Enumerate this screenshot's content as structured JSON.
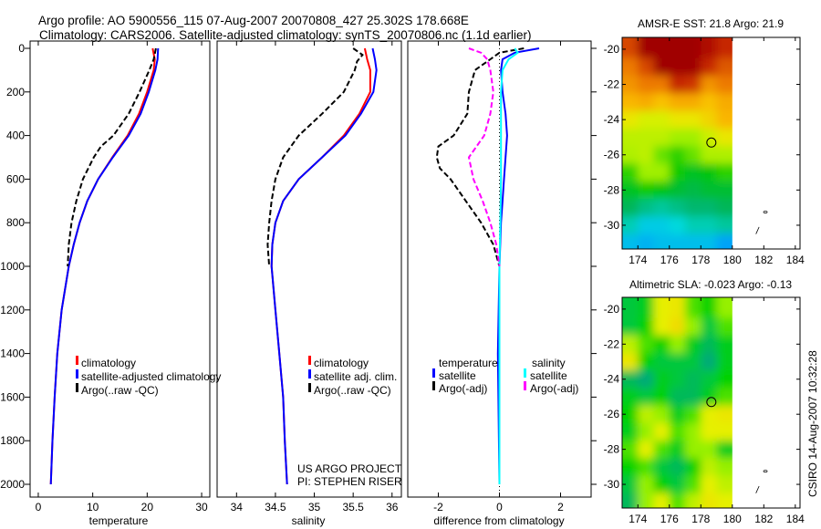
{
  "title_line1": "Argo profile: AO 5900556_115 07-Aug-2007 20070808_427 25.302S 178.668E",
  "title_line2": "Climatology: CARS2006. Satellite-adjusted climatology: synTS_20070806.nc (1.1d earlier)",
  "project_line1": "US ARGO PROJECT",
  "project_line2": "PI: STEPHEN RISER",
  "footer": "CSIRO 14-Aug-2007 10:32:28",
  "colors": {
    "climatology": "#ff0000",
    "satellite": "#0000ff",
    "argo": "#000000",
    "sal_satellite": "#00ffff",
    "sal_argo": "#ff00ff"
  },
  "chart_data": [
    {
      "type": "line",
      "xlabel": "temperature",
      "ylabel": "",
      "xlim": [
        -1.5,
        31.5
      ],
      "ylim": [
        0,
        2060
      ],
      "y_inverted": true,
      "xticks": [
        0,
        10,
        20,
        30
      ],
      "yticks": [
        0,
        200,
        400,
        600,
        800,
        1000,
        1200,
        1400,
        1600,
        1800,
        2000
      ],
      "legend": [
        "climatology",
        "satellite-adjusted climatology",
        "Argo(..raw -QC)"
      ],
      "series": [
        {
          "name": "climatology",
          "color": "#ff0000",
          "dash": false,
          "depth": [
            0,
            50,
            100,
            200,
            300,
            400,
            500,
            600,
            700,
            800,
            900,
            1000,
            1200,
            1400,
            1600,
            1800,
            2000
          ],
          "values": [
            21,
            21.4,
            21.2,
            20,
            18.5,
            16.4,
            13.6,
            11,
            9,
            7.6,
            6.5,
            5.6,
            4.3,
            3.5,
            3,
            2.6,
            2.3
          ]
        },
        {
          "name": "satellite-adjusted climatology",
          "color": "#0000ff",
          "dash": false,
          "depth": [
            0,
            50,
            100,
            200,
            300,
            400,
            500,
            600,
            700,
            800,
            900,
            1000,
            1200,
            1400,
            1600,
            1800,
            2000
          ],
          "values": [
            22,
            21.9,
            21.5,
            20.3,
            18.8,
            16.6,
            13.7,
            11,
            9,
            7.6,
            6.5,
            5.6,
            4.3,
            3.5,
            3,
            2.6,
            2.3
          ]
        },
        {
          "name": "Argo(..raw -QC)",
          "color": "#000000",
          "dash": true,
          "depth": [
            0,
            50,
            100,
            200,
            300,
            400,
            450,
            500,
            600,
            700,
            800,
            900,
            1000
          ],
          "values": [
            21.6,
            21.2,
            20.4,
            18.6,
            16.6,
            13.8,
            11.5,
            10.2,
            8.2,
            7,
            6.1,
            5.6,
            5.4
          ]
        }
      ]
    },
    {
      "type": "line",
      "xlabel": "salinity",
      "xlim": [
        33.75,
        36.12
      ],
      "ylim": [
        0,
        2060
      ],
      "y_inverted": true,
      "xticks": [
        34,
        34.5,
        35,
        35.5,
        36
      ],
      "legend": [
        "climatology",
        "satellite adj. clim.",
        "Argo(..raw -QC)"
      ],
      "series": [
        {
          "name": "climatology",
          "color": "#ff0000",
          "dash": false,
          "depth": [
            0,
            50,
            100,
            200,
            300,
            400,
            500,
            600,
            700,
            800,
            900,
            1000,
            1200,
            1400,
            1600,
            1800,
            2000
          ],
          "values": [
            35.65,
            35.68,
            35.72,
            35.72,
            35.58,
            35.38,
            35.1,
            34.8,
            34.6,
            34.5,
            34.46,
            34.45,
            34.5,
            34.55,
            34.6,
            34.62,
            34.65
          ]
        },
        {
          "name": "satellite adj. clim.",
          "color": "#0000ff",
          "dash": false,
          "depth": [
            0,
            50,
            100,
            200,
            300,
            400,
            500,
            600,
            700,
            800,
            900,
            1000,
            1200,
            1400,
            1600,
            1800,
            2000
          ],
          "values": [
            35.75,
            35.78,
            35.8,
            35.76,
            35.6,
            35.4,
            35.1,
            34.8,
            34.6,
            34.5,
            34.46,
            34.45,
            34.5,
            34.55,
            34.6,
            34.62,
            34.65
          ]
        },
        {
          "name": "Argo(..raw -QC)",
          "color": "#000000",
          "dash": true,
          "depth": [
            0,
            30,
            60,
            100,
            200,
            300,
            400,
            500,
            600,
            700,
            800,
            900,
            1000
          ],
          "values": [
            35.5,
            35.62,
            35.55,
            35.52,
            35.38,
            35.1,
            34.8,
            34.6,
            34.5,
            34.45,
            34.42,
            34.4,
            34.42
          ]
        }
      ]
    },
    {
      "type": "line",
      "xlabel": "difference from climatology",
      "xlim": [
        -3,
        3
      ],
      "ylim": [
        0,
        2060
      ],
      "y_inverted": true,
      "xticks": [
        -2,
        0,
        2
      ],
      "legend_headers": [
        "temperature",
        "salinity"
      ],
      "legend": [
        "satellite",
        "Argo(-adj)",
        "satellite",
        "Argo(-adj)"
      ],
      "series": [
        {
          "name": "temperature satellite",
          "color": "#0000ff",
          "dash": false,
          "depth": [
            0,
            20,
            50,
            100,
            200,
            300,
            400,
            500,
            600,
            700,
            800,
            1000,
            1400,
            2000
          ],
          "values": [
            1.3,
            0.5,
            0.1,
            0.05,
            0.1,
            0.2,
            0.25,
            0.2,
            0.15,
            0.1,
            0.05,
            0,
            -0.05,
            0
          ]
        },
        {
          "name": "temperature Argo(-adj)",
          "color": "#000000",
          "dash": true,
          "depth": [
            0,
            20,
            50,
            100,
            200,
            300,
            400,
            450,
            500,
            550,
            600,
            700,
            800,
            900,
            1000
          ],
          "values": [
            0.8,
            0,
            -0.3,
            -0.8,
            -1,
            -1.05,
            -1.5,
            -2,
            -2.05,
            -1.95,
            -1.6,
            -1.1,
            -0.6,
            -0.2,
            0
          ]
        },
        {
          "name": "salinity satellite",
          "color": "#00ffff",
          "dash": false,
          "depth": [
            0,
            20,
            50,
            100,
            200,
            400,
            600,
            800,
            1000,
            1400,
            2000
          ],
          "values": [
            0.5,
            0.6,
            0.3,
            0.1,
            0.05,
            0.05,
            0.05,
            0.03,
            0,
            0,
            0
          ]
        },
        {
          "name": "salinity Argo(-adj)",
          "color": "#ff00ff",
          "dash": true,
          "depth": [
            0,
            20,
            50,
            100,
            200,
            300,
            400,
            500,
            600,
            700,
            800,
            900,
            1000
          ],
          "values": [
            -1,
            -0.6,
            -0.4,
            -0.3,
            -0.2,
            -0.3,
            -0.5,
            -1.0,
            -0.85,
            -0.55,
            -0.3,
            -0.1,
            0
          ]
        }
      ]
    },
    {
      "type": "heatmap",
      "title": "AMSR-E SST: 21.8 Argo: 21.9",
      "xlim": [
        173,
        184.3
      ],
      "ylim": [
        -31.35,
        -19.33
      ],
      "xticks": [
        174,
        176,
        178,
        180,
        182,
        184
      ],
      "yticks": [
        -20,
        -22,
        -24,
        -26,
        -28,
        -30
      ],
      "lons": [
        173.5,
        174.5,
        175.5,
        176.5,
        177.5,
        178.5,
        179.5
      ],
      "lats": [
        -20,
        -21,
        -22,
        -23,
        -24,
        -25,
        -26,
        -27,
        -28,
        -29,
        -30,
        -31
      ],
      "values": [
        [
          23.3,
          24,
          24,
          24,
          24,
          23.8,
          23.5
        ],
        [
          23,
          23.3,
          24,
          24,
          24,
          23.5,
          23.2
        ],
        [
          22.8,
          23,
          23,
          23.5,
          23.4,
          22.8,
          23
        ],
        [
          22.5,
          22.6,
          22.4,
          22.6,
          22.6,
          22.4,
          22.6
        ],
        [
          22,
          21.8,
          21.8,
          22,
          22,
          22.2,
          22.5
        ],
        [
          21.6,
          21.6,
          21.6,
          21.4,
          21.4,
          21.7,
          22
        ],
        [
          21.5,
          21.6,
          21.2,
          21,
          21.2,
          21.5,
          21.5
        ],
        [
          21,
          21.4,
          21.4,
          20.9,
          20.7,
          20.8,
          21
        ],
        [
          20.7,
          20.9,
          20.8,
          20.6,
          20.5,
          20.6,
          20.6
        ],
        [
          20.4,
          20.2,
          20.1,
          20.2,
          20.3,
          20.3,
          20.4
        ],
        [
          20,
          19.7,
          19.7,
          19.8,
          20,
          20,
          20.1
        ],
        [
          19.6,
          19.5,
          19.6,
          19.6,
          19.6,
          19.6,
          19.4
        ]
      ],
      "range": [
        19.3,
        24
      ],
      "colormap": [
        "#0096ff",
        "#00dcdc",
        "#00b464",
        "#00c800",
        "#a0f000",
        "#e6f000",
        "#fabe00",
        "#f08200",
        "#c82800",
        "#a00000"
      ],
      "marker": {
        "lon": 178.668,
        "lat": -25.302
      }
    },
    {
      "type": "heatmap",
      "title": "Altimetric SLA: -0.023 Argo: -0.13",
      "xlim": [
        173,
        184.3
      ],
      "ylim": [
        -31.35,
        -19.33
      ],
      "xticks": [
        174,
        176,
        178,
        180,
        182,
        184
      ],
      "yticks": [
        -20,
        -22,
        -24,
        -26,
        -28,
        -30
      ],
      "lons": [
        173.5,
        174.5,
        175.5,
        176.5,
        177.5,
        178.5,
        179.5
      ],
      "lats": [
        -20,
        -21,
        -22,
        -23,
        -24,
        -25,
        -26,
        -27,
        -28,
        -29,
        -30,
        -31
      ],
      "values": [
        [
          0.2,
          0.3,
          0.8,
          0.9,
          0.5,
          0.4,
          0.6
        ],
        [
          0.2,
          0.4,
          0.8,
          1.0,
          0.6,
          0.2,
          0.5
        ],
        [
          0.7,
          0.5,
          0.4,
          0.6,
          0.3,
          0.1,
          0.3
        ],
        [
          0.9,
          0.4,
          0.2,
          0.2,
          0.2,
          0.0,
          0.3
        ],
        [
          0.1,
          0.0,
          0.3,
          0.2,
          0.1,
          0.2,
          0.4
        ],
        [
          0.3,
          0.2,
          0.4,
          0.1,
          0.1,
          0.3,
          0.5
        ],
        [
          0.4,
          0.7,
          0.6,
          0.3,
          0.5,
          0.8,
          0.9
        ],
        [
          0.3,
          0.6,
          0.8,
          0.5,
          0.6,
          0.8,
          0.8
        ],
        [
          0.5,
          0.8,
          0.5,
          0.3,
          0.6,
          0.6,
          0.3
        ],
        [
          0.4,
          0.5,
          0.2,
          0.1,
          0.4,
          0.7,
          0.6
        ],
        [
          0.2,
          0.6,
          0.4,
          0.2,
          0.5,
          0.8,
          0.7
        ],
        [
          0.1,
          0.6,
          0.8,
          0.5,
          0.7,
          0.9,
          0.8
        ]
      ],
      "range": [
        0,
        1
      ],
      "colormap": [
        "#00aa78",
        "#00c83c",
        "#00d200",
        "#96f000",
        "#e6f000",
        "#f0dc00"
      ],
      "marker": {
        "lon": 178.668,
        "lat": -25.302
      }
    }
  ]
}
